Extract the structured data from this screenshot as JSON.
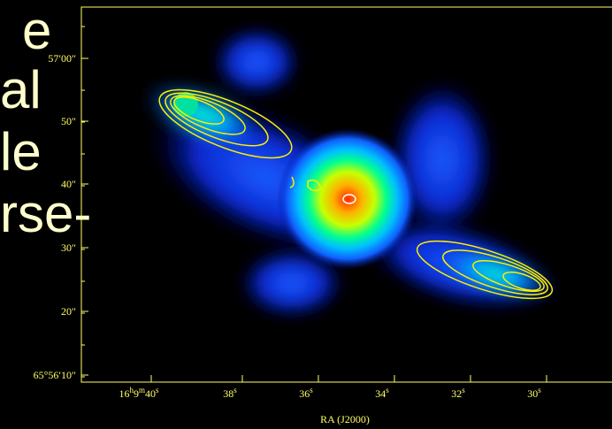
{
  "slide_text": {
    "lines": [
      "e",
      "al",
      "le",
      "rse-"
    ]
  },
  "plot": {
    "y_ticks": [
      "57′00″",
      "50″",
      "40″",
      "30″",
      "20″",
      "65°56′10″"
    ],
    "x_ticks": [
      [
        "16",
        "h",
        "9",
        "m",
        "40",
        "s"
      ],
      [
        "38",
        "s"
      ],
      [
        "36",
        "s"
      ],
      [
        "34",
        "s"
      ],
      [
        "32",
        "s"
      ],
      [
        "30",
        "s"
      ]
    ],
    "x_label": "RA (J2000)"
  }
}
